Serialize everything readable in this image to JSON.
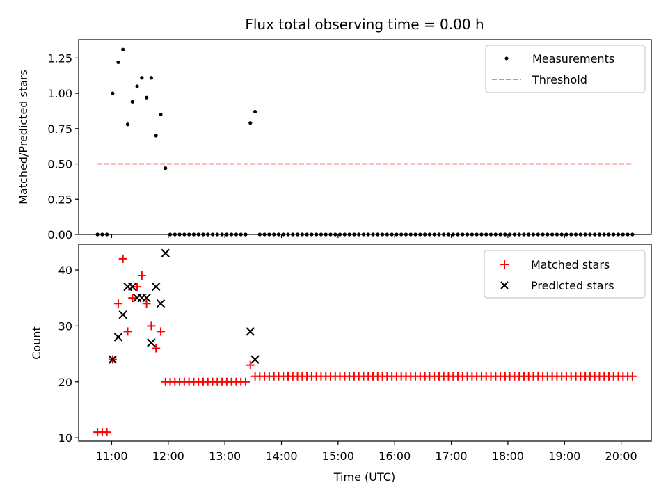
{
  "chart_data": [
    {
      "type": "scatter",
      "title": "Flux total observing time = 0.00 h",
      "xlabel": "",
      "ylabel": "Matched/Predicted stars",
      "ylim": [
        0,
        1.38
      ],
      "yticks": [
        "0.00",
        "0.25",
        "0.50",
        "0.75",
        "1.00",
        "1.25"
      ],
      "legend_position": "top-right",
      "series": [
        {
          "name": "Measurements",
          "marker": "dot",
          "color": "#000000",
          "points": [
            [
              "10:45",
              0
            ],
            [
              "10:50",
              0
            ],
            [
              "10:55",
              0
            ],
            [
              "11:01",
              1.0
            ],
            [
              "11:07",
              1.22
            ],
            [
              "11:12",
              1.31
            ],
            [
              "11:17",
              0.78
            ],
            [
              "11:22",
              0.94
            ],
            [
              "11:27",
              1.05
            ],
            [
              "11:32",
              1.11
            ],
            [
              "11:37",
              0.97
            ],
            [
              "11:42",
              1.11
            ],
            [
              "11:47",
              0.7
            ],
            [
              "11:52",
              0.85
            ],
            [
              "11:57",
              0.47
            ],
            [
              "12:02",
              0
            ],
            [
              "12:07",
              0
            ],
            [
              "12:12",
              0
            ],
            [
              "12:17",
              0
            ],
            [
              "12:22",
              0
            ],
            [
              "12:27",
              0
            ],
            [
              "12:32",
              0
            ],
            [
              "12:37",
              0
            ],
            [
              "12:42",
              0
            ],
            [
              "12:47",
              0
            ],
            [
              "12:52",
              0
            ],
            [
              "12:57",
              0
            ],
            [
              "13:02",
              0
            ],
            [
              "13:07",
              0
            ],
            [
              "13:12",
              0
            ],
            [
              "13:17",
              0
            ],
            [
              "13:22",
              0
            ],
            [
              "13:27",
              0.79
            ],
            [
              "13:32",
              0.87
            ],
            [
              "13:37",
              0
            ],
            [
              "13:42",
              0
            ],
            [
              "13:47",
              0
            ],
            [
              "13:52",
              0
            ],
            [
              "13:57",
              0
            ],
            [
              "14:02",
              0
            ],
            [
              "14:07",
              0
            ],
            [
              "14:12",
              0
            ],
            [
              "14:17",
              0
            ],
            [
              "14:22",
              0
            ],
            [
              "14:27",
              0
            ],
            [
              "14:32",
              0
            ],
            [
              "14:37",
              0
            ],
            [
              "14:42",
              0
            ],
            [
              "14:47",
              0
            ],
            [
              "14:52",
              0
            ],
            [
              "14:57",
              0
            ],
            [
              "15:02",
              0
            ],
            [
              "15:07",
              0
            ],
            [
              "15:12",
              0
            ],
            [
              "15:17",
              0
            ],
            [
              "15:22",
              0
            ],
            [
              "15:27",
              0
            ],
            [
              "15:32",
              0
            ],
            [
              "15:37",
              0
            ],
            [
              "15:42",
              0
            ],
            [
              "15:47",
              0
            ],
            [
              "15:52",
              0
            ],
            [
              "15:57",
              0
            ],
            [
              "16:02",
              0
            ],
            [
              "16:07",
              0
            ],
            [
              "16:12",
              0
            ],
            [
              "16:17",
              0
            ],
            [
              "16:22",
              0
            ],
            [
              "16:27",
              0
            ],
            [
              "16:32",
              0
            ],
            [
              "16:37",
              0
            ],
            [
              "16:42",
              0
            ],
            [
              "16:47",
              0
            ],
            [
              "16:52",
              0
            ],
            [
              "16:57",
              0
            ],
            [
              "17:02",
              0
            ],
            [
              "17:07",
              0
            ],
            [
              "17:12",
              0
            ],
            [
              "17:17",
              0
            ],
            [
              "17:22",
              0
            ],
            [
              "17:27",
              0
            ],
            [
              "17:32",
              0
            ],
            [
              "17:37",
              0
            ],
            [
              "17:42",
              0
            ],
            [
              "17:47",
              0
            ],
            [
              "17:52",
              0
            ],
            [
              "17:57",
              0
            ],
            [
              "18:02",
              0
            ],
            [
              "18:07",
              0
            ],
            [
              "18:12",
              0
            ],
            [
              "18:17",
              0
            ],
            [
              "18:22",
              0
            ],
            [
              "18:27",
              0
            ],
            [
              "18:32",
              0
            ],
            [
              "18:37",
              0
            ],
            [
              "18:42",
              0
            ],
            [
              "18:47",
              0
            ],
            [
              "18:52",
              0
            ],
            [
              "18:57",
              0
            ],
            [
              "19:02",
              0
            ],
            [
              "19:07",
              0
            ],
            [
              "19:12",
              0
            ],
            [
              "19:17",
              0
            ],
            [
              "19:22",
              0
            ],
            [
              "19:27",
              0
            ],
            [
              "19:32",
              0
            ],
            [
              "19:37",
              0
            ],
            [
              "19:42",
              0
            ],
            [
              "19:47",
              0
            ],
            [
              "19:52",
              0
            ],
            [
              "19:57",
              0
            ],
            [
              "20:02",
              0
            ],
            [
              "20:07",
              0
            ],
            [
              "20:12",
              0
            ]
          ]
        },
        {
          "name": "Threshold",
          "marker": "dashed-line",
          "color": "#ff7f7f",
          "points": [
            [
              "10:45",
              0.5
            ],
            [
              "20:12",
              0.5
            ]
          ]
        }
      ]
    },
    {
      "type": "scatter",
      "title": "",
      "xlabel": "Time (UTC)",
      "ylabel": "Count",
      "ylim": [
        9.4,
        44.6
      ],
      "yticks": [
        "10",
        "20",
        "30",
        "40"
      ],
      "xticks": [
        "11:00",
        "12:00",
        "13:00",
        "14:00",
        "15:00",
        "16:00",
        "17:00",
        "18:00",
        "19:00",
        "20:00"
      ],
      "legend_position": "top-right",
      "series": [
        {
          "name": "Matched stars",
          "marker": "plus",
          "color": "#ff0000",
          "points": [
            [
              "10:45",
              11
            ],
            [
              "10:50",
              11
            ],
            [
              "10:55",
              11
            ],
            [
              "11:01",
              24
            ],
            [
              "11:07",
              34
            ],
            [
              "11:12",
              42
            ],
            [
              "11:17",
              29
            ],
            [
              "11:22",
              35
            ],
            [
              "11:27",
              37
            ],
            [
              "11:32",
              39
            ],
            [
              "11:37",
              34
            ],
            [
              "11:42",
              30
            ],
            [
              "11:47",
              26
            ],
            [
              "11:52",
              29
            ],
            [
              "11:57",
              20
            ],
            [
              "12:02",
              20
            ],
            [
              "12:07",
              20
            ],
            [
              "12:12",
              20
            ],
            [
              "12:17",
              20
            ],
            [
              "12:22",
              20
            ],
            [
              "12:27",
              20
            ],
            [
              "12:32",
              20
            ],
            [
              "12:37",
              20
            ],
            [
              "12:42",
              20
            ],
            [
              "12:47",
              20
            ],
            [
              "12:52",
              20
            ],
            [
              "12:57",
              20
            ],
            [
              "13:02",
              20
            ],
            [
              "13:07",
              20
            ],
            [
              "13:12",
              20
            ],
            [
              "13:17",
              20
            ],
            [
              "13:22",
              20
            ],
            [
              "13:27",
              23
            ],
            [
              "13:32",
              21
            ],
            [
              "13:37",
              21
            ],
            [
              "13:42",
              21
            ],
            [
              "13:47",
              21
            ],
            [
              "13:52",
              21
            ],
            [
              "13:57",
              21
            ],
            [
              "14:02",
              21
            ],
            [
              "14:07",
              21
            ],
            [
              "14:12",
              21
            ],
            [
              "14:17",
              21
            ],
            [
              "14:22",
              21
            ],
            [
              "14:27",
              21
            ],
            [
              "14:32",
              21
            ],
            [
              "14:37",
              21
            ],
            [
              "14:42",
              21
            ],
            [
              "14:47",
              21
            ],
            [
              "14:52",
              21
            ],
            [
              "14:57",
              21
            ],
            [
              "15:02",
              21
            ],
            [
              "15:07",
              21
            ],
            [
              "15:12",
              21
            ],
            [
              "15:17",
              21
            ],
            [
              "15:22",
              21
            ],
            [
              "15:27",
              21
            ],
            [
              "15:32",
              21
            ],
            [
              "15:37",
              21
            ],
            [
              "15:42",
              21
            ],
            [
              "15:47",
              21
            ],
            [
              "15:52",
              21
            ],
            [
              "15:57",
              21
            ],
            [
              "16:02",
              21
            ],
            [
              "16:07",
              21
            ],
            [
              "16:12",
              21
            ],
            [
              "16:17",
              21
            ],
            [
              "16:22",
              21
            ],
            [
              "16:27",
              21
            ],
            [
              "16:32",
              21
            ],
            [
              "16:37",
              21
            ],
            [
              "16:42",
              21
            ],
            [
              "16:47",
              21
            ],
            [
              "16:52",
              21
            ],
            [
              "16:57",
              21
            ],
            [
              "17:02",
              21
            ],
            [
              "17:07",
              21
            ],
            [
              "17:12",
              21
            ],
            [
              "17:17",
              21
            ],
            [
              "17:22",
              21
            ],
            [
              "17:27",
              21
            ],
            [
              "17:32",
              21
            ],
            [
              "17:37",
              21
            ],
            [
              "17:42",
              21
            ],
            [
              "17:47",
              21
            ],
            [
              "17:52",
              21
            ],
            [
              "17:57",
              21
            ],
            [
              "18:02",
              21
            ],
            [
              "18:07",
              21
            ],
            [
              "18:12",
              21
            ],
            [
              "18:17",
              21
            ],
            [
              "18:22",
              21
            ],
            [
              "18:27",
              21
            ],
            [
              "18:32",
              21
            ],
            [
              "18:37",
              21
            ],
            [
              "18:42",
              21
            ],
            [
              "18:47",
              21
            ],
            [
              "18:52",
              21
            ],
            [
              "18:57",
              21
            ],
            [
              "19:02",
              21
            ],
            [
              "19:07",
              21
            ],
            [
              "19:12",
              21
            ],
            [
              "19:17",
              21
            ],
            [
              "19:22",
              21
            ],
            [
              "19:27",
              21
            ],
            [
              "19:32",
              21
            ],
            [
              "19:37",
              21
            ],
            [
              "19:42",
              21
            ],
            [
              "19:47",
              21
            ],
            [
              "19:52",
              21
            ],
            [
              "19:57",
              21
            ],
            [
              "20:02",
              21
            ],
            [
              "20:07",
              21
            ],
            [
              "20:12",
              21
            ]
          ]
        },
        {
          "name": "Predicted stars",
          "marker": "x",
          "color": "#000000",
          "points": [
            [
              "11:01",
              24
            ],
            [
              "11:07",
              28
            ],
            [
              "11:12",
              32
            ],
            [
              "11:17",
              37
            ],
            [
              "11:22",
              37
            ],
            [
              "11:27",
              35
            ],
            [
              "11:32",
              35
            ],
            [
              "11:37",
              35
            ],
            [
              "11:42",
              27
            ],
            [
              "11:47",
              37
            ],
            [
              "11:52",
              34
            ],
            [
              "11:57",
              43
            ],
            [
              "13:27",
              29
            ],
            [
              "13:32",
              24
            ]
          ]
        }
      ]
    }
  ]
}
